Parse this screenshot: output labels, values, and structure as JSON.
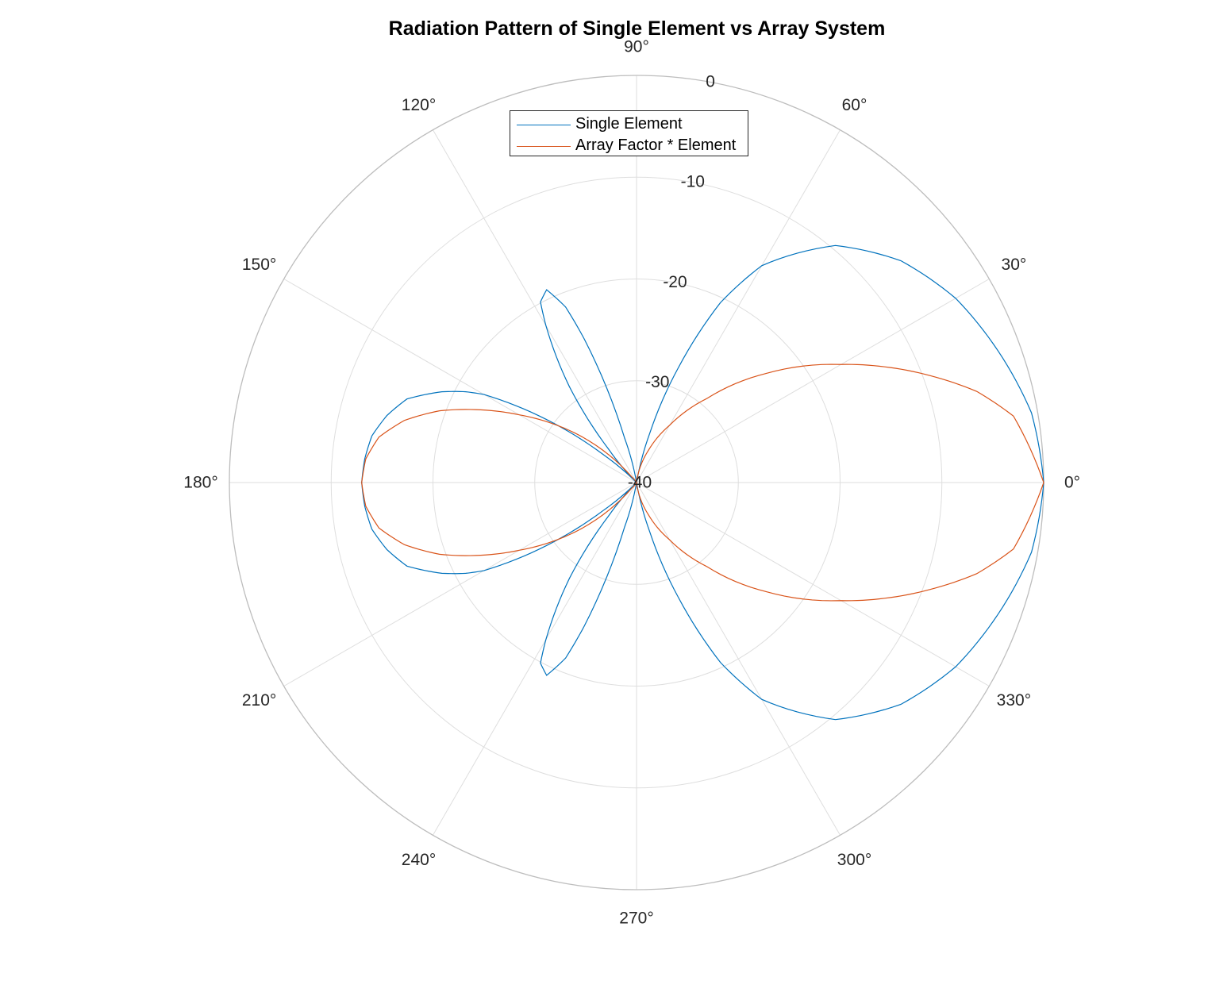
{
  "chart_data": {
    "type": "line",
    "subtype": "polar",
    "title": "Radiation Pattern of Single Element vs Array System",
    "theta_ticks_deg": [
      0,
      30,
      60,
      90,
      120,
      150,
      180,
      210,
      240,
      270,
      300,
      330
    ],
    "theta_tick_labels": [
      "0°",
      "30°",
      "60°",
      "90°",
      "120°",
      "150°",
      "180°",
      "210°",
      "240°",
      "270°",
      "300°",
      "330°"
    ],
    "r_range": [
      -40,
      0
    ],
    "r_ticks": [
      -40,
      -30,
      -20,
      -10,
      0
    ],
    "r_tick_labels": [
      "-40",
      "-30",
      "-20",
      "-10",
      "0"
    ],
    "r_tick_label_angle_deg": 80,
    "grid": true,
    "legend_position": "top-center",
    "series": [
      {
        "name": "Single Element",
        "color": "#0072BD",
        "theta_deg": [
          0,
          10,
          20,
          30,
          40,
          50,
          60,
          65,
          70,
          75,
          80,
          85,
          90,
          95,
          100,
          105,
          110,
          112,
          115,
          118,
          120,
          125,
          130,
          135,
          140,
          145,
          150,
          152,
          155,
          160,
          165,
          170,
          175,
          180
        ],
        "r_db": [
          0,
          -0.6,
          -2.2,
          -3.8,
          -6.1,
          -9.6,
          -15.4,
          -20.5,
          -28.0,
          -35.0,
          -40.0,
          -40.0,
          -40.0,
          -40.0,
          -40.0,
          -35.5,
          -25.0,
          -21.4,
          -19.1,
          -19.9,
          -22.2,
          -28.5,
          -35.8,
          -40.0,
          -35.7,
          -29.2,
          -22.7,
          -21.0,
          -18.9,
          -16.0,
          -14.6,
          -13.6,
          -13.2,
          -13.0
        ]
      },
      {
        "name": "Array Factor * Element",
        "color": "#D95319",
        "theta_deg": [
          0,
          10,
          15,
          20,
          25,
          30,
          40,
          50,
          60,
          70,
          80,
          90,
          100,
          110,
          120,
          130,
          140,
          145,
          150,
          155,
          160,
          165,
          170,
          175,
          180
        ],
        "r_db": [
          0,
          -2.4,
          -5.4,
          -9.3,
          -13.1,
          -16.8,
          -23.3,
          -29.2,
          -33.5,
          -36.7,
          -39.3,
          -40.0,
          -40.0,
          -40.0,
          -40.0,
          -39.3,
          -33.0,
          -29.9,
          -26.7,
          -23.1,
          -19.4,
          -16.4,
          -14.3,
          -13.3,
          -13.0
        ]
      }
    ]
  }
}
